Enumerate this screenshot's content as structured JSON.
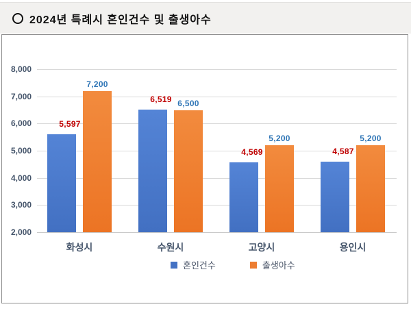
{
  "title": {
    "bullet": "○",
    "text": "2024년 특례시 혼인건수 및 출생아수"
  },
  "chart_data": {
    "type": "bar",
    "title": "2024년 특례시 혼인건수 및 출생아수",
    "categories": [
      "화성시",
      "수원시",
      "고양시",
      "용인시"
    ],
    "series": [
      {
        "name": "혼인건수",
        "color": "#4472C4",
        "label_color": "#C00000",
        "values": [
          5597,
          6519,
          4569,
          4587
        ],
        "labels": [
          "5,597",
          "6,519",
          "4,569",
          "4,587"
        ]
      },
      {
        "name": "출생아수",
        "color": "#ED7D31",
        "label_color": "#2E75B6",
        "values": [
          7200,
          6500,
          5200,
          5200
        ],
        "labels": [
          "7,200",
          "6,500",
          "5,200",
          "5,200"
        ]
      }
    ],
    "ylim": [
      2000,
      8000
    ],
    "ytick_interval": 1000,
    "yticks": [
      {
        "value": 2000,
        "label": "2,000"
      },
      {
        "value": 3000,
        "label": "3,000"
      },
      {
        "value": 4000,
        "label": "4,000"
      },
      {
        "value": 5000,
        "label": "5,000"
      },
      {
        "value": 6000,
        "label": "6,000"
      },
      {
        "value": 7000,
        "label": "7,000"
      },
      {
        "value": 8000,
        "label": "8,000"
      }
    ],
    "grid": true,
    "legend_position": "bottom-center",
    "axis_text_color": "#44546A",
    "gridline_color": "#D9D9D9"
  }
}
